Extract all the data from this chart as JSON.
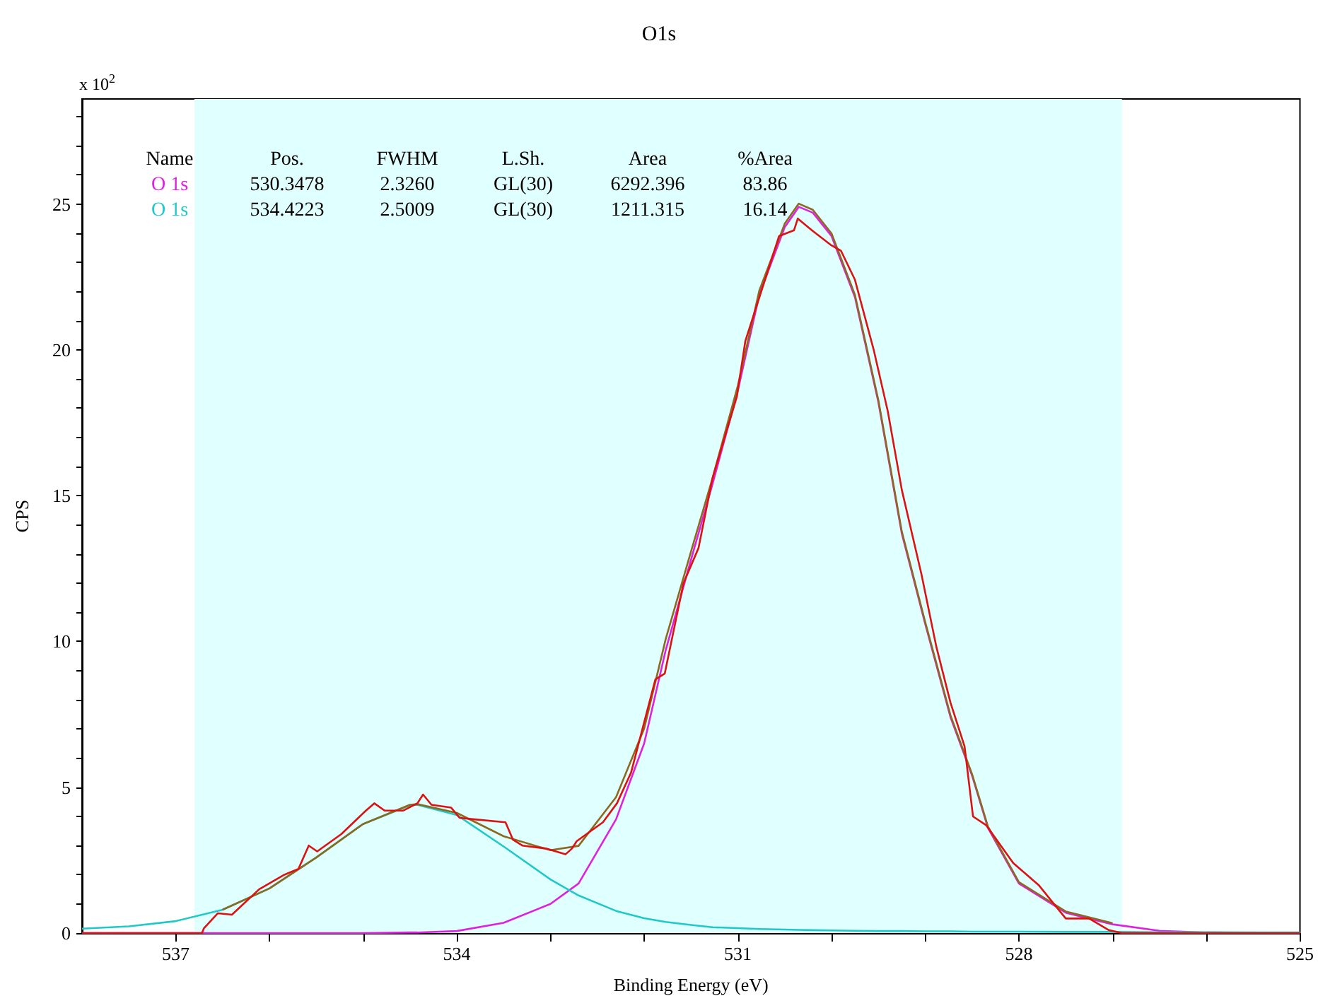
{
  "chart_data": {
    "type": "line",
    "title": "O1s",
    "xlabel": "Binding Energy (eV)",
    "ylabel": "CPS",
    "annotations": [
      "Name",
      "Pos.",
      "FWHM",
      "L.Sh.",
      "Area",
      "%Area",
      "530.3478",
      "2.3260",
      "GL(30)",
      "6292.396",
      "83.86",
      "534.4223",
      "2.5009",
      "GL(30)",
      "1211.315",
      "16.14",
      "x 10$^{2}$"
    ],
    "xlim": [
      538,
      525
    ],
    "xticks": [
      537,
      {
        "value": 536,
        "label": null
      },
      {
        "value": 535,
        "label": null
      },
      534,
      {
        "value": 533,
        "label": null
      },
      {
        "value": 532,
        "label": null
      },
      531,
      {
        "value": 530,
        "label": null
      },
      {
        "value": 529,
        "label": null
      },
      528,
      {
        "value": 527,
        "label": null
      },
      {
        "value": 526,
        "label": null
      },
      525
    ],
    "ylim": [
      0,
      28.6
    ],
    "yticks": [
      0,
      {
        "value": 1,
        "label": null
      },
      {
        "value": 2,
        "label": null
      },
      {
        "value": 3,
        "label": null
      },
      {
        "value": 4,
        "label": null
      },
      5,
      {
        "value": 6,
        "label": null
      },
      {
        "value": 7,
        "label": null
      },
      {
        "value": 8,
        "label": null
      },
      {
        "value": 9,
        "label": null
      },
      10,
      {
        "value": 11,
        "label": null
      },
      {
        "value": 12,
        "label": null
      },
      {
        "value": 13,
        "label": null
      },
      {
        "value": 14,
        "label": null
      },
      15,
      {
        "value": 16,
        "label": null
      },
      {
        "value": 17,
        "label": null
      },
      {
        "value": 18,
        "label": null
      },
      {
        "value": 19,
        "label": null
      },
      20,
      {
        "value": 21,
        "label": null
      },
      {
        "value": 22,
        "label": null
      },
      {
        "value": 23,
        "label": null
      },
      {
        "value": 24,
        "label": null
      },
      25,
      {
        "value": 26,
        "label": null
      },
      {
        "value": 27,
        "label": null
      },
      {
        "value": 28,
        "label": null
      }
    ],
    "bands": [
      {
        "axis": "x",
        "from": 536.8,
        "to": 526.9,
        "color": "#e0ffff"
      }
    ],
    "grid": false,
    "legend": false,
    "marker": "none",
    "line_style": "solid",
    "series": [
      {
        "name": "O 1s",
        "color": "#e020e0",
        "x": [
          538,
          537.5,
          537,
          536.5,
          536,
          535.5,
          535,
          534.5,
          534.42,
          534,
          533.5,
          533,
          532.7,
          532.3,
          532,
          531.77,
          531.5,
          531.27,
          531,
          530.77,
          530.5,
          530.35,
          530.2,
          530,
          529.75,
          529.5,
          529.25,
          529,
          528.73,
          528.5,
          528.33,
          528,
          527.5,
          527,
          526.5,
          526,
          525
        ],
        "values": [
          0,
          0,
          0,
          0,
          0,
          0,
          0,
          0.02,
          0.02,
          0.07,
          0.35,
          1.0,
          1.7,
          3.9,
          6.5,
          9.7,
          12.8,
          15.4,
          18.6,
          21.9,
          24.2,
          24.9,
          24.7,
          23.9,
          21.8,
          18.2,
          13.7,
          10.6,
          7.4,
          5.4,
          3.6,
          1.7,
          0.7,
          0.3,
          0.08,
          0.02,
          0
        ]
      },
      {
        "name": "O 1s",
        "color": "#20c8c8",
        "x": [
          538,
          537.5,
          537,
          536.5,
          536,
          535.5,
          535,
          534.5,
          534.42,
          534,
          533.5,
          533,
          532.7,
          532.3,
          532,
          531.77,
          531.5,
          531.27,
          531,
          530.77,
          530.5,
          530.35,
          530.2,
          530,
          529.75,
          529.5,
          529.25,
          529,
          528.73,
          528.5,
          528.33,
          528,
          527.5,
          527,
          526.5,
          526,
          525
        ],
        "values": [
          0.15,
          0.23,
          0.41,
          0.8,
          1.53,
          2.59,
          3.74,
          4.38,
          4.4,
          4.05,
          2.97,
          1.84,
          1.29,
          0.76,
          0.51,
          0.38,
          0.28,
          0.2,
          0.17,
          0.14,
          0.12,
          0.11,
          0.1,
          0.09,
          0.08,
          0.07,
          0.07,
          0.06,
          0.06,
          0.05,
          0.05,
          0.05,
          0.04,
          0.04,
          0.03,
          0.03,
          0.02
        ]
      },
      {
        "color": "#8b6a20",
        "x": [
          536.5,
          536,
          535.5,
          535,
          534.5,
          534.42,
          534,
          533.5,
          533,
          532.7,
          532.3,
          532,
          531.77,
          531.5,
          531.27,
          531,
          530.77,
          530.5,
          530.35,
          530.2,
          530,
          529.75,
          529.5,
          529.25,
          529,
          528.73,
          528.5,
          528.33,
          528,
          527.5,
          527
        ],
        "values": [
          0.8,
          1.53,
          2.59,
          3.74,
          4.4,
          4.42,
          4.12,
          3.32,
          2.84,
          2.99,
          4.66,
          7.01,
          10.08,
          13.08,
          15.6,
          18.77,
          22.04,
          24.32,
          25.01,
          24.8,
          23.99,
          21.88,
          18.27,
          13.77,
          10.66,
          7.46,
          5.45,
          3.65,
          1.75,
          0.74,
          0.34
        ]
      },
      {
        "color": "#e01010",
        "x": [
          538,
          536.72,
          536.7,
          536.55,
          536.4,
          536.11,
          535.84,
          535.69,
          535.58,
          535.49,
          535.23,
          534.97,
          534.88,
          534.77,
          534.57,
          534.42,
          534.36,
          534.27,
          534.06,
          533.97,
          533.81,
          533.48,
          533.4,
          533.3,
          533.05,
          532.84,
          532.77,
          532.72,
          532.44,
          532.29,
          532.14,
          531.88,
          531.78,
          531.58,
          531.42,
          531.27,
          531.01,
          530.92,
          530.71,
          530.56,
          530.4,
          530.36,
          530.21,
          530.01,
          529.9,
          529.75,
          529.55,
          529.4,
          529.25,
          529.04,
          528.88,
          528.73,
          528.58,
          528.49,
          528.35,
          528.06,
          527.79,
          527.5,
          527.25,
          527.04,
          526.9,
          525
        ],
        "values": [
          0,
          0,
          0.16,
          0.68,
          0.63,
          1.5,
          2.0,
          2.2,
          3.0,
          2.8,
          3.4,
          4.2,
          4.45,
          4.2,
          4.2,
          4.45,
          4.75,
          4.4,
          4.3,
          3.95,
          3.9,
          3.8,
          3.2,
          3.0,
          2.9,
          2.7,
          2.9,
          3.15,
          3.8,
          4.45,
          5.5,
          8.7,
          8.9,
          12.0,
          13.2,
          15.6,
          18.4,
          20.3,
          22.4,
          23.9,
          24.1,
          24.5,
          24.1,
          23.6,
          23.4,
          22.4,
          20.0,
          17.9,
          15.2,
          12.3,
          9.8,
          7.9,
          6.4,
          4.0,
          3.7,
          2.4,
          1.65,
          0.5,
          0.5,
          0.1,
          0,
          0
        ]
      }
    ]
  }
}
